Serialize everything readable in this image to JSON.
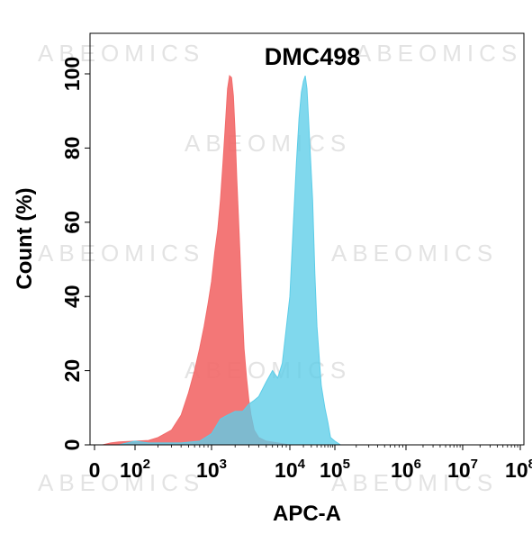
{
  "chart_data": {
    "type": "area",
    "title": "DMC498",
    "xlabel": "APC-A",
    "ylabel": "Count  (%)",
    "xscale": "log",
    "xlim": [
      0,
      100000000
    ],
    "ylim": [
      0,
      100
    ],
    "y_ticks": [
      "0",
      "20",
      "40",
      "60",
      "80",
      "100"
    ],
    "x_ticks": [
      {
        "base": "0",
        "exp": ""
      },
      {
        "base": "10",
        "exp": "2"
      },
      {
        "base": "10",
        "exp": "3"
      },
      {
        "base": "10",
        "exp": "4"
      },
      {
        "base": "10",
        "exp": "5"
      },
      {
        "base": "10",
        "exp": "6"
      },
      {
        "base": "10",
        "exp": "7"
      },
      {
        "base": "10",
        "exp": "8"
      }
    ],
    "watermark": "ABEOMICS",
    "grid": false,
    "series": [
      {
        "color": "#f26b6b",
        "x": [
          20,
          40,
          60,
          100,
          150,
          200,
          300,
          400,
          500,
          600,
          700,
          800,
          900,
          1000,
          1100,
          1200,
          1300,
          1400,
          1500,
          1600,
          1700,
          1800,
          1900,
          2000,
          2100,
          2200,
          2300,
          2400,
          2500,
          2600,
          2800,
          3000,
          3200,
          3500,
          4000,
          5000,
          7000,
          10000
        ],
        "y": [
          0,
          0.5,
          0.8,
          1,
          1.2,
          2,
          4,
          8,
          14,
          20,
          26,
          32,
          38,
          44,
          52,
          58,
          66,
          76,
          86,
          96,
          99.5,
          99,
          94,
          84,
          72,
          62,
          52,
          42,
          34,
          26,
          18,
          12,
          8,
          4,
          2,
          1,
          0.5,
          0
        ]
      },
      {
        "color": "#5ccde8",
        "x": [
          60,
          100,
          150,
          250,
          400,
          700,
          1000,
          1300,
          1600,
          2000,
          2500,
          3000,
          3500,
          4000,
          5000,
          6000,
          7000,
          8000,
          10000,
          12000,
          14000,
          16000,
          18000,
          20000,
          22000,
          24000,
          26000,
          28000,
          32000,
          36000,
          40000,
          50000,
          60000,
          70000,
          80000,
          100000,
          120000
        ],
        "y": [
          0,
          1,
          0.5,
          0.5,
          0.5,
          1,
          3,
          7,
          8,
          9,
          9,
          11,
          12,
          13,
          17,
          20,
          18,
          22,
          40,
          60,
          76,
          88,
          95,
          98,
          99.5,
          96,
          88,
          80,
          66,
          46,
          32,
          16,
          10,
          6,
          2,
          1,
          0
        ]
      }
    ]
  }
}
